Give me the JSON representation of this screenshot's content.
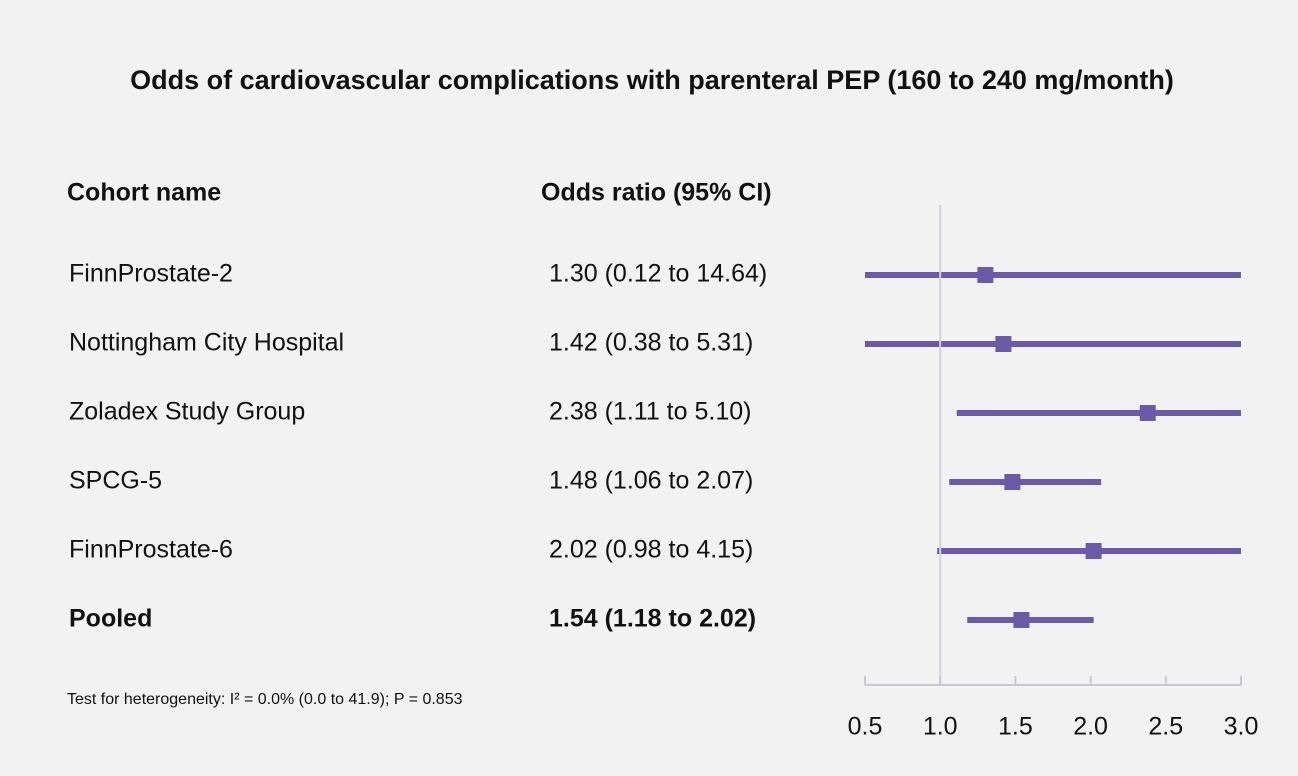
{
  "chart_data": {
    "type": "forest",
    "title": "Odds of cardiovascular complications with parenteral PEP (160 to 240 mg/month)",
    "column_headers": [
      "Cohort name",
      "Odds ratio (95% CI)"
    ],
    "categories": [
      "FinnProstate-2",
      "Nottingham City Hospital",
      "Zoladex Study Group",
      "SPCG-5",
      "FinnProstate-6",
      "Pooled"
    ],
    "values": [
      1.3,
      1.42,
      2.38,
      1.48,
      2.02,
      1.54
    ],
    "lower": [
      0.12,
      0.38,
      1.11,
      1.06,
      0.98,
      1.18
    ],
    "upper": [
      14.64,
      5.31,
      5.1,
      2.07,
      4.15,
      2.02
    ],
    "value_labels": [
      "1.30 (0.12 to 14.64)",
      "1.42 (0.38 to 5.31)",
      "2.38 (1.11 to 5.10)",
      "1.48 (1.06 to 2.07)",
      "2.02 (0.98 to 4.15)",
      "1.54 (1.18 to 2.02)"
    ],
    "bold": [
      false,
      false,
      false,
      false,
      false,
      true
    ],
    "note": "Test for heterogeneity: I² = 0.0% (0.0 to 41.9); P = 0.853",
    "xlim": [
      0.5,
      3.0
    ],
    "xticks": [
      0.5,
      {
        "value": 1,
        "label": "1.0"
      },
      1.5,
      {
        "value": 2,
        "label": "2.0"
      },
      2.5,
      {
        "value": 3,
        "label": "3.0"
      }
    ],
    "reference_line": 1,
    "color": "#6a5aa8"
  }
}
